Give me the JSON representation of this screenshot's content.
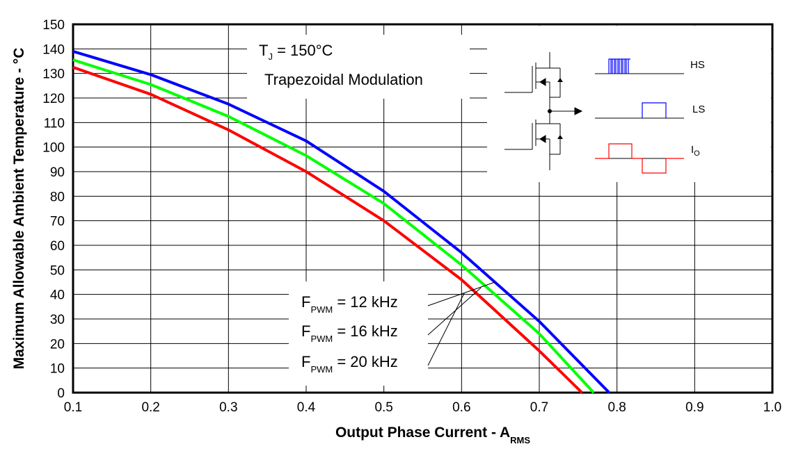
{
  "chart_data": {
    "type": "line",
    "xlabel": "Output Phase Current - A",
    "xlabel_sub": "RMS",
    "ylabel": "Maximum Allowable Ambient Temperature - °C",
    "xlim": [
      0.1,
      1.0
    ],
    "ylim": [
      0,
      150
    ],
    "x_ticks": [
      "0.1",
      "0.2",
      "0.3",
      "0.4",
      "0.5",
      "0.6",
      "0.7",
      "0.8",
      "0.9",
      "1.0"
    ],
    "y_ticks": [
      "0",
      "10",
      "20",
      "30",
      "40",
      "50",
      "60",
      "70",
      "80",
      "90",
      "100",
      "110",
      "120",
      "130",
      "140",
      "150"
    ],
    "grid": true,
    "series": [
      {
        "name": "F_PWM = 12 kHz",
        "color": "#0000ff",
        "x": [
          0.1,
          0.2,
          0.3,
          0.4,
          0.5,
          0.6,
          0.7,
          0.79
        ],
        "y": [
          139,
          129.5,
          117.5,
          102.5,
          82,
          57,
          29,
          0
        ]
      },
      {
        "name": "F_PWM = 16 kHz",
        "color": "#00ff00",
        "x": [
          0.1,
          0.2,
          0.3,
          0.4,
          0.5,
          0.6,
          0.7,
          0.77
        ],
        "y": [
          135.5,
          125.5,
          112.5,
          96.5,
          77,
          52,
          24,
          0
        ]
      },
      {
        "name": "F_PWM = 20 kHz",
        "color": "#ff0000",
        "x": [
          0.1,
          0.2,
          0.3,
          0.4,
          0.5,
          0.6,
          0.7,
          0.755
        ],
        "y": [
          132.5,
          121.5,
          107,
          90,
          70,
          46,
          17,
          0
        ]
      }
    ]
  },
  "annotations": {
    "tj_main": "T",
    "tj_sub": "J",
    "tj_value": " = 150°C",
    "modulation": "Trapezoidal Modulation",
    "legend": [
      {
        "main": "F",
        "sub": "PWM",
        "value": " = 12 kHz"
      },
      {
        "main": "F",
        "sub": "PWM",
        "value": " = 16 kHz"
      },
      {
        "main": "F",
        "sub": "PWM",
        "value": " = 20 kHz"
      }
    ]
  },
  "inset": {
    "hs_label": "HS",
    "ls_label": "LS",
    "io_main": "I",
    "io_sub": "O",
    "colors": {
      "hs": "#0000ff",
      "ls": "#0000ff",
      "io": "#ff0000"
    }
  }
}
